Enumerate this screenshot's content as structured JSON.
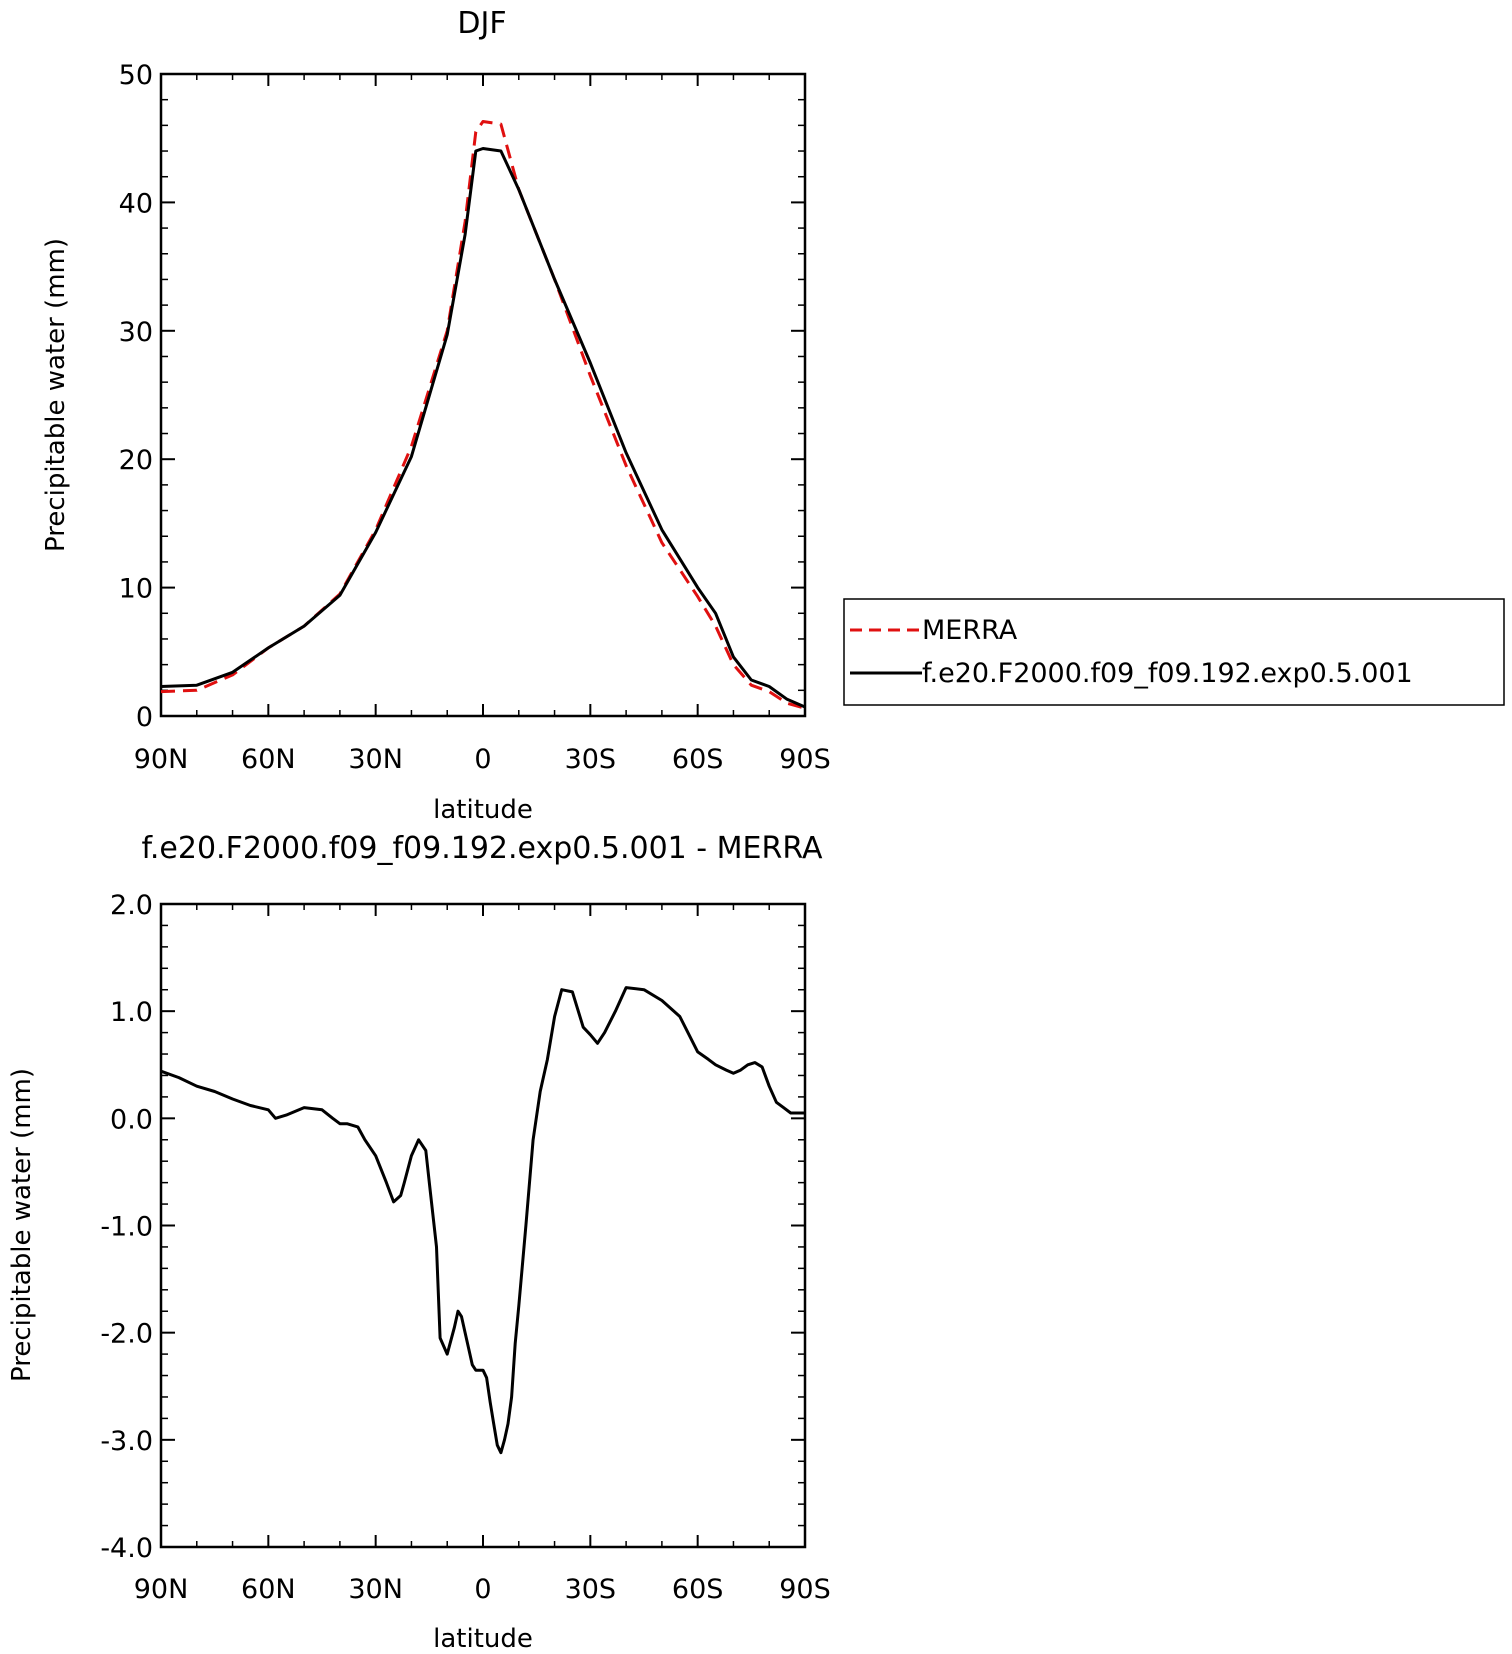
{
  "chart_data": [
    {
      "type": "line",
      "title": "DJF",
      "xlabel": "latitude",
      "ylabel": "Precipitable water (mm)",
      "x_tick_labels": [
        "90N",
        "60N",
        "30N",
        "0",
        "30S",
        "60S",
        "90S"
      ],
      "x_tick_values": [
        90,
        60,
        30,
        0,
        -30,
        -60,
        -90
      ],
      "y_tick_labels": [
        "0",
        "10",
        "20",
        "30",
        "40",
        "50"
      ],
      "y_tick_values": [
        0,
        10,
        20,
        30,
        40,
        50
      ],
      "xlim": [
        90,
        -90
      ],
      "ylim": [
        0,
        50
      ],
      "legend_position": "right",
      "series": [
        {
          "name": "MERRA",
          "color": "#e01010",
          "dash": "dashed",
          "x": [
            90,
            80,
            70,
            60,
            50,
            40,
            30,
            20,
            10,
            5,
            2,
            0,
            -5,
            -10,
            -20,
            -30,
            -40,
            -50,
            -60,
            -65,
            -70,
            -75,
            -80,
            -85,
            -90
          ],
          "y": [
            1.9,
            2.0,
            3.2,
            5.3,
            7.0,
            9.5,
            14.5,
            21.0,
            30.0,
            38.5,
            45.5,
            46.3,
            46.1,
            41.0,
            34.0,
            26.5,
            19.5,
            13.5,
            9.3,
            7.0,
            4.0,
            2.4,
            1.9,
            1.0,
            0.6
          ]
        },
        {
          "name": "f.e20.F2000.f09_f09.192.exp0.5.001",
          "color": "#000000",
          "dash": "solid",
          "x": [
            90,
            80,
            70,
            60,
            50,
            40,
            30,
            20,
            10,
            5,
            2,
            0,
            -5,
            -10,
            -20,
            -30,
            -40,
            -50,
            -60,
            -65,
            -70,
            -75,
            -80,
            -85,
            -90
          ],
          "y": [
            2.3,
            2.4,
            3.4,
            5.3,
            7.0,
            9.4,
            14.3,
            20.2,
            29.7,
            37.5,
            44.0,
            44.2,
            44.0,
            41.0,
            34.0,
            27.5,
            20.5,
            14.5,
            10.0,
            8.0,
            4.6,
            2.8,
            2.3,
            1.3,
            0.7
          ]
        }
      ]
    },
    {
      "type": "line",
      "title": "f.e20.F2000.f09_f09.192.exp0.5.001 - MERRA",
      "xlabel": "latitude",
      "ylabel": "Precipitable water (mm)",
      "x_tick_labels": [
        "90N",
        "60N",
        "30N",
        "0",
        "30S",
        "60S",
        "90S"
      ],
      "x_tick_values": [
        90,
        60,
        30,
        0,
        -30,
        -60,
        -90
      ],
      "y_tick_labels": [
        "2.0",
        "1.0",
        "0.0",
        "-1.0",
        "-2.0",
        "-3.0",
        "-4.0"
      ],
      "y_tick_values": [
        2,
        1,
        0,
        -1,
        -2,
        -3,
        -4
      ],
      "xlim": [
        90,
        -90
      ],
      "ylim": [
        -4,
        2
      ],
      "series": [
        {
          "color": "#000000",
          "dash": "solid",
          "x": [
            90,
            85,
            80,
            75,
            70,
            65,
            60,
            58,
            55,
            50,
            45,
            42,
            40,
            38,
            35,
            33,
            30,
            27,
            25,
            23,
            22,
            20,
            18,
            16,
            15,
            13,
            12,
            10,
            8,
            7,
            6,
            5,
            4,
            3,
            2,
            0,
            -1,
            -2,
            -3,
            -4,
            -5,
            -6,
            -7,
            -8,
            -9,
            -10,
            -12,
            -14,
            -16,
            -18,
            -20,
            -22,
            -25,
            -28,
            -30,
            -32,
            -34,
            -37,
            -40,
            -45,
            -50,
            -55,
            -60,
            -63,
            -65,
            -68,
            -70,
            -72,
            -74,
            -76,
            -78,
            -80,
            -82,
            -84,
            -86,
            -88,
            -90
          ],
          "y": [
            0.44,
            0.38,
            0.3,
            0.25,
            0.18,
            0.12,
            0.08,
            0.0,
            0.03,
            0.1,
            0.08,
            0.0,
            -0.05,
            -0.05,
            -0.08,
            -0.2,
            -0.35,
            -0.6,
            -0.78,
            -0.72,
            -0.6,
            -0.35,
            -0.2,
            -0.3,
            -0.6,
            -1.2,
            -2.05,
            -2.2,
            -1.95,
            -1.8,
            -1.85,
            -2.0,
            -2.15,
            -2.3,
            -2.35,
            -2.35,
            -2.42,
            -2.65,
            -2.85,
            -3.05,
            -3.12,
            -3.0,
            -2.85,
            -2.6,
            -2.1,
            -1.75,
            -1.0,
            -0.2,
            0.25,
            0.55,
            0.95,
            1.2,
            1.18,
            0.85,
            0.78,
            0.7,
            0.8,
            1.0,
            1.22,
            1.2,
            1.1,
            0.95,
            0.62,
            0.55,
            0.5,
            0.45,
            0.42,
            0.45,
            0.5,
            0.52,
            0.48,
            0.3,
            0.15,
            0.1,
            0.05,
            0.05,
            0.05
          ]
        }
      ]
    }
  ]
}
